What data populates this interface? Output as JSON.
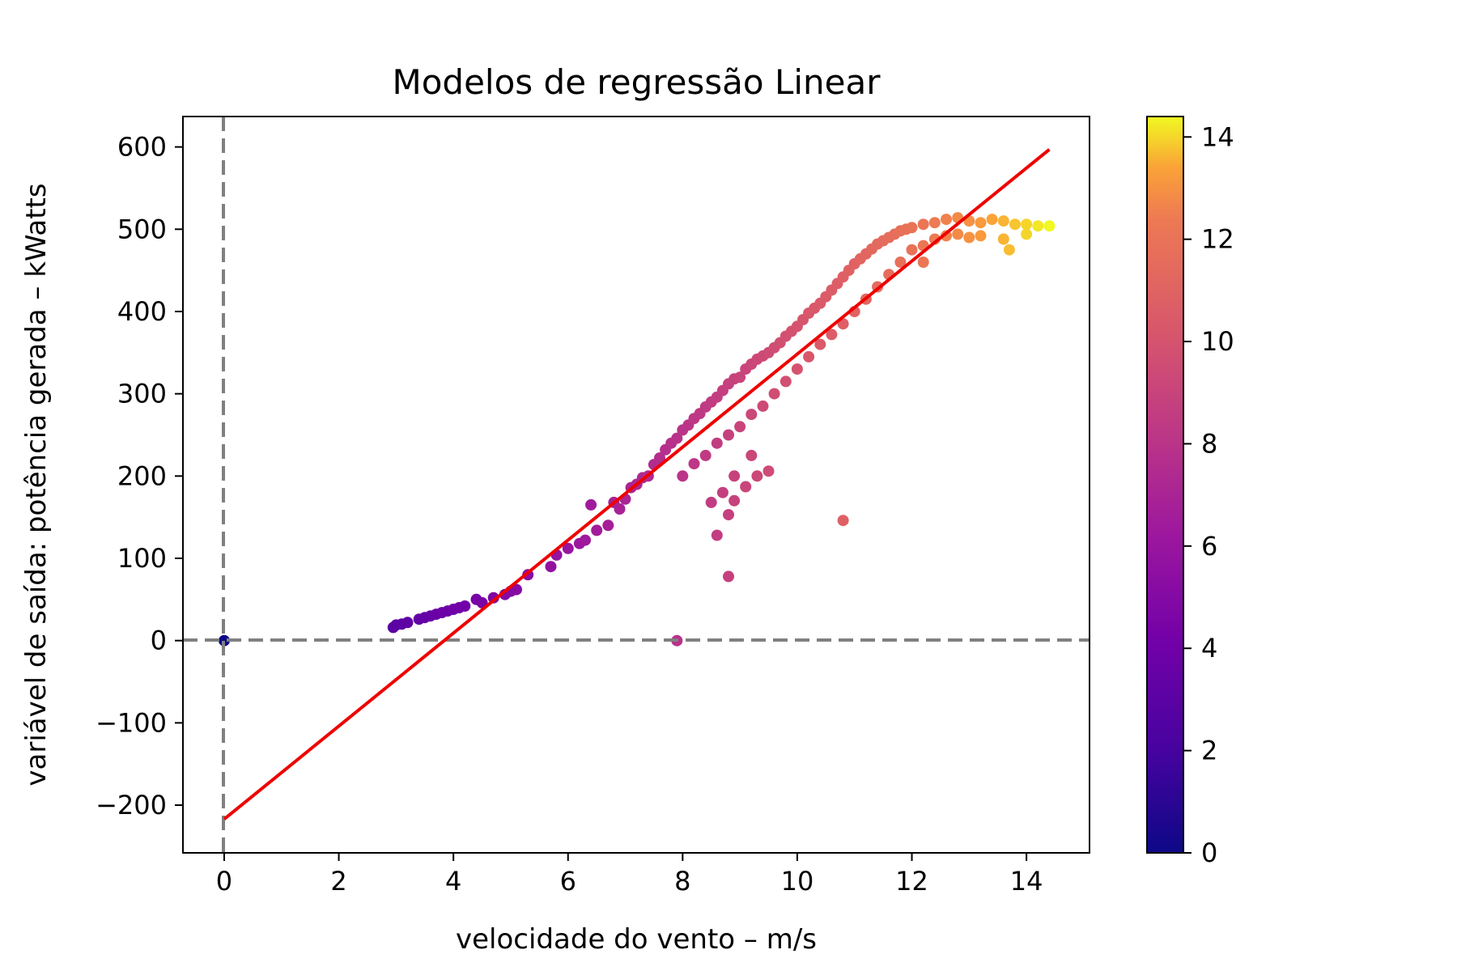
{
  "chart_data": {
    "type": "scatter",
    "title": "Modelos de regressão Linear",
    "xlabel": "velocidade do vento – m/s",
    "ylabel": "variável de saída: potência gerada – kWatts",
    "xlim": [
      -0.72,
      15.1
    ],
    "ylim": [
      -258,
      637
    ],
    "x_ticks": [
      0,
      2,
      4,
      6,
      8,
      10,
      12,
      14
    ],
    "y_ticks": [
      -200,
      -100,
      0,
      100,
      200,
      300,
      400,
      500,
      600
    ],
    "x_tick_labels": [
      "0",
      "2",
      "4",
      "6",
      "8",
      "10",
      "12",
      "14"
    ],
    "y_tick_labels": [
      "−200",
      "−100",
      "0",
      "100",
      "200",
      "300",
      "400",
      "500",
      "600"
    ],
    "grid": false,
    "reference_lines": [
      {
        "orientation": "horizontal",
        "value": 0,
        "style": "dashed",
        "color": "#808080"
      },
      {
        "orientation": "vertical",
        "value": 0,
        "style": "dashed",
        "color": "#808080"
      }
    ],
    "regression_line": {
      "color": "#ee0000",
      "start": {
        "x": 0,
        "y": -217
      },
      "end": {
        "x": 14.4,
        "y": 597
      }
    },
    "colorbar": {
      "colormap": "plasma",
      "range": [
        0,
        14.4
      ],
      "ticks": [
        0,
        2,
        4,
        6,
        8,
        10,
        12,
        14
      ],
      "tick_labels": [
        "0",
        "2",
        "4",
        "6",
        "8",
        "10",
        "12",
        "14"
      ]
    },
    "series": [
      {
        "color_by": "x",
        "points": [
          [
            0.0,
            0
          ],
          [
            2.95,
            16
          ],
          [
            3.0,
            19
          ],
          [
            3.1,
            20
          ],
          [
            3.2,
            22
          ],
          [
            3.4,
            26
          ],
          [
            3.5,
            28
          ],
          [
            3.6,
            30
          ],
          [
            3.7,
            32
          ],
          [
            3.8,
            34
          ],
          [
            3.9,
            36
          ],
          [
            4.0,
            38
          ],
          [
            4.1,
            40
          ],
          [
            4.2,
            42
          ],
          [
            4.4,
            50
          ],
          [
            4.5,
            46
          ],
          [
            4.7,
            52
          ],
          [
            4.9,
            56
          ],
          [
            5.0,
            60
          ],
          [
            5.1,
            62
          ],
          [
            5.3,
            80
          ],
          [
            5.7,
            90
          ],
          [
            5.8,
            104
          ],
          [
            6.0,
            112
          ],
          [
            6.2,
            118
          ],
          [
            6.3,
            122
          ],
          [
            6.4,
            165
          ],
          [
            6.5,
            134
          ],
          [
            6.7,
            140
          ],
          [
            6.8,
            168
          ],
          [
            6.9,
            160
          ],
          [
            7.0,
            172
          ],
          [
            7.1,
            186
          ],
          [
            7.2,
            190
          ],
          [
            7.3,
            198
          ],
          [
            7.4,
            200
          ],
          [
            7.5,
            214
          ],
          [
            7.6,
            222
          ],
          [
            7.7,
            232
          ],
          [
            7.8,
            240
          ],
          [
            7.9,
            246
          ],
          [
            8.0,
            256
          ],
          [
            8.1,
            262
          ],
          [
            8.2,
            270
          ],
          [
            8.3,
            276
          ],
          [
            8.4,
            284
          ],
          [
            8.5,
            290
          ],
          [
            8.6,
            296
          ],
          [
            8.7,
            304
          ],
          [
            8.8,
            312
          ],
          [
            8.9,
            318
          ],
          [
            9.0,
            320
          ],
          [
            9.1,
            330
          ],
          [
            9.2,
            336
          ],
          [
            9.3,
            342
          ],
          [
            9.4,
            346
          ],
          [
            9.5,
            350
          ],
          [
            9.6,
            356
          ],
          [
            9.7,
            362
          ],
          [
            9.8,
            370
          ],
          [
            9.9,
            376
          ],
          [
            10.0,
            382
          ],
          [
            10.1,
            390
          ],
          [
            10.2,
            398
          ],
          [
            10.3,
            404
          ],
          [
            10.4,
            410
          ],
          [
            10.5,
            418
          ],
          [
            10.6,
            426
          ],
          [
            10.7,
            434
          ],
          [
            10.8,
            442
          ],
          [
            10.9,
            450
          ],
          [
            11.0,
            458
          ],
          [
            11.1,
            464
          ],
          [
            11.2,
            470
          ],
          [
            11.3,
            476
          ],
          [
            11.4,
            482
          ],
          [
            11.5,
            486
          ],
          [
            11.6,
            490
          ],
          [
            11.7,
            494
          ],
          [
            11.8,
            498
          ],
          [
            11.9,
            500
          ],
          [
            12.0,
            502
          ],
          [
            12.2,
            506
          ],
          [
            12.4,
            508
          ],
          [
            12.6,
            512
          ],
          [
            12.8,
            514
          ],
          [
            13.0,
            510
          ],
          [
            13.2,
            508
          ],
          [
            13.4,
            512
          ],
          [
            13.6,
            510
          ],
          [
            13.8,
            506
          ],
          [
            14.0,
            506
          ],
          [
            14.2,
            504
          ],
          [
            14.4,
            504
          ],
          [
            8.0,
            200
          ],
          [
            8.2,
            215
          ],
          [
            8.4,
            225
          ],
          [
            8.6,
            240
          ],
          [
            8.8,
            250
          ],
          [
            9.0,
            260
          ],
          [
            9.2,
            275
          ],
          [
            9.4,
            285
          ],
          [
            9.6,
            300
          ],
          [
            9.8,
            315
          ],
          [
            10.0,
            330
          ],
          [
            10.2,
            345
          ],
          [
            10.4,
            360
          ],
          [
            10.6,
            372
          ],
          [
            10.8,
            385
          ],
          [
            11.0,
            400
          ],
          [
            11.2,
            415
          ],
          [
            11.4,
            430
          ],
          [
            11.6,
            445
          ],
          [
            11.8,
            460
          ],
          [
            12.0,
            475
          ],
          [
            12.2,
            480
          ],
          [
            12.4,
            488
          ],
          [
            12.6,
            492
          ],
          [
            12.8,
            494
          ],
          [
            13.0,
            490
          ],
          [
            13.2,
            492
          ],
          [
            13.6,
            488
          ],
          [
            14.0,
            494
          ],
          [
            13.7,
            475
          ],
          [
            12.2,
            460
          ],
          [
            9.2,
            225
          ],
          [
            8.9,
            200
          ],
          [
            9.3,
            200
          ],
          [
            9.5,
            206
          ],
          [
            9.1,
            187
          ],
          [
            8.7,
            180
          ],
          [
            8.9,
            170
          ],
          [
            8.5,
            168
          ],
          [
            8.8,
            153
          ],
          [
            8.6,
            128
          ],
          [
            8.8,
            78
          ],
          [
            7.9,
            0
          ],
          [
            10.8,
            146
          ]
        ]
      }
    ]
  }
}
